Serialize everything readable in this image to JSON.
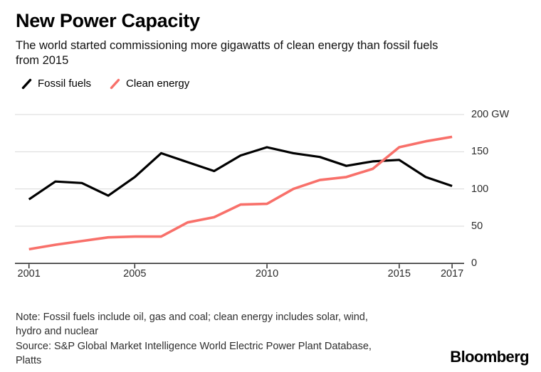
{
  "header": {
    "title": "New Power Capacity",
    "subtitle": "The world started commissioning more gigawatts of clean energy than fossil fuels\nfrom 2015"
  },
  "legend": [
    {
      "label": "Fossil fuels",
      "color": "#000000",
      "icon": "slash-icon"
    },
    {
      "label": "Clean energy",
      "color": "#f8706a",
      "icon": "slash-icon"
    }
  ],
  "chart_data": {
    "type": "line",
    "x": [
      2001,
      2002,
      2003,
      2004,
      2005,
      2006,
      2007,
      2008,
      2009,
      2010,
      2011,
      2012,
      2013,
      2014,
      2015,
      2016,
      2017
    ],
    "series": [
      {
        "name": "Fossil fuels",
        "color": "#000000",
        "values": [
          86,
          110,
          108,
          91,
          116,
          148,
          136,
          124,
          145,
          156,
          148,
          143,
          131,
          137,
          139,
          116,
          104
        ]
      },
      {
        "name": "Clean energy",
        "color": "#f8706a",
        "values": [
          19,
          25,
          30,
          35,
          36,
          36,
          55,
          62,
          79,
          80,
          100,
          112,
          116,
          127,
          156,
          164,
          170
        ]
      }
    ],
    "title": "New Power Capacity",
    "xlabel": "",
    "ylabel": "GW",
    "ylim": [
      0,
      200
    ],
    "yticks": [
      0,
      50,
      100,
      150,
      200
    ],
    "ytick_labels": [
      "0",
      "50",
      "100",
      "150",
      "200 GW"
    ],
    "xticks": [
      2001,
      2005,
      2010,
      2015,
      2017
    ],
    "grid": true,
    "y_axis_side": "right",
    "legend_position": "top-left"
  },
  "footer": {
    "note": "Note: Fossil fuels include oil, gas and coal; clean energy includes solar, wind,\nhydro and nuclear",
    "source": "Source: S&P Global Market Intelligence World Electric Power Plant Database,\nPlatts",
    "brand": "Bloomberg"
  },
  "colors": {
    "grid": "#dadada",
    "axis": "#2b2b2b",
    "background": "#ffffff"
  }
}
